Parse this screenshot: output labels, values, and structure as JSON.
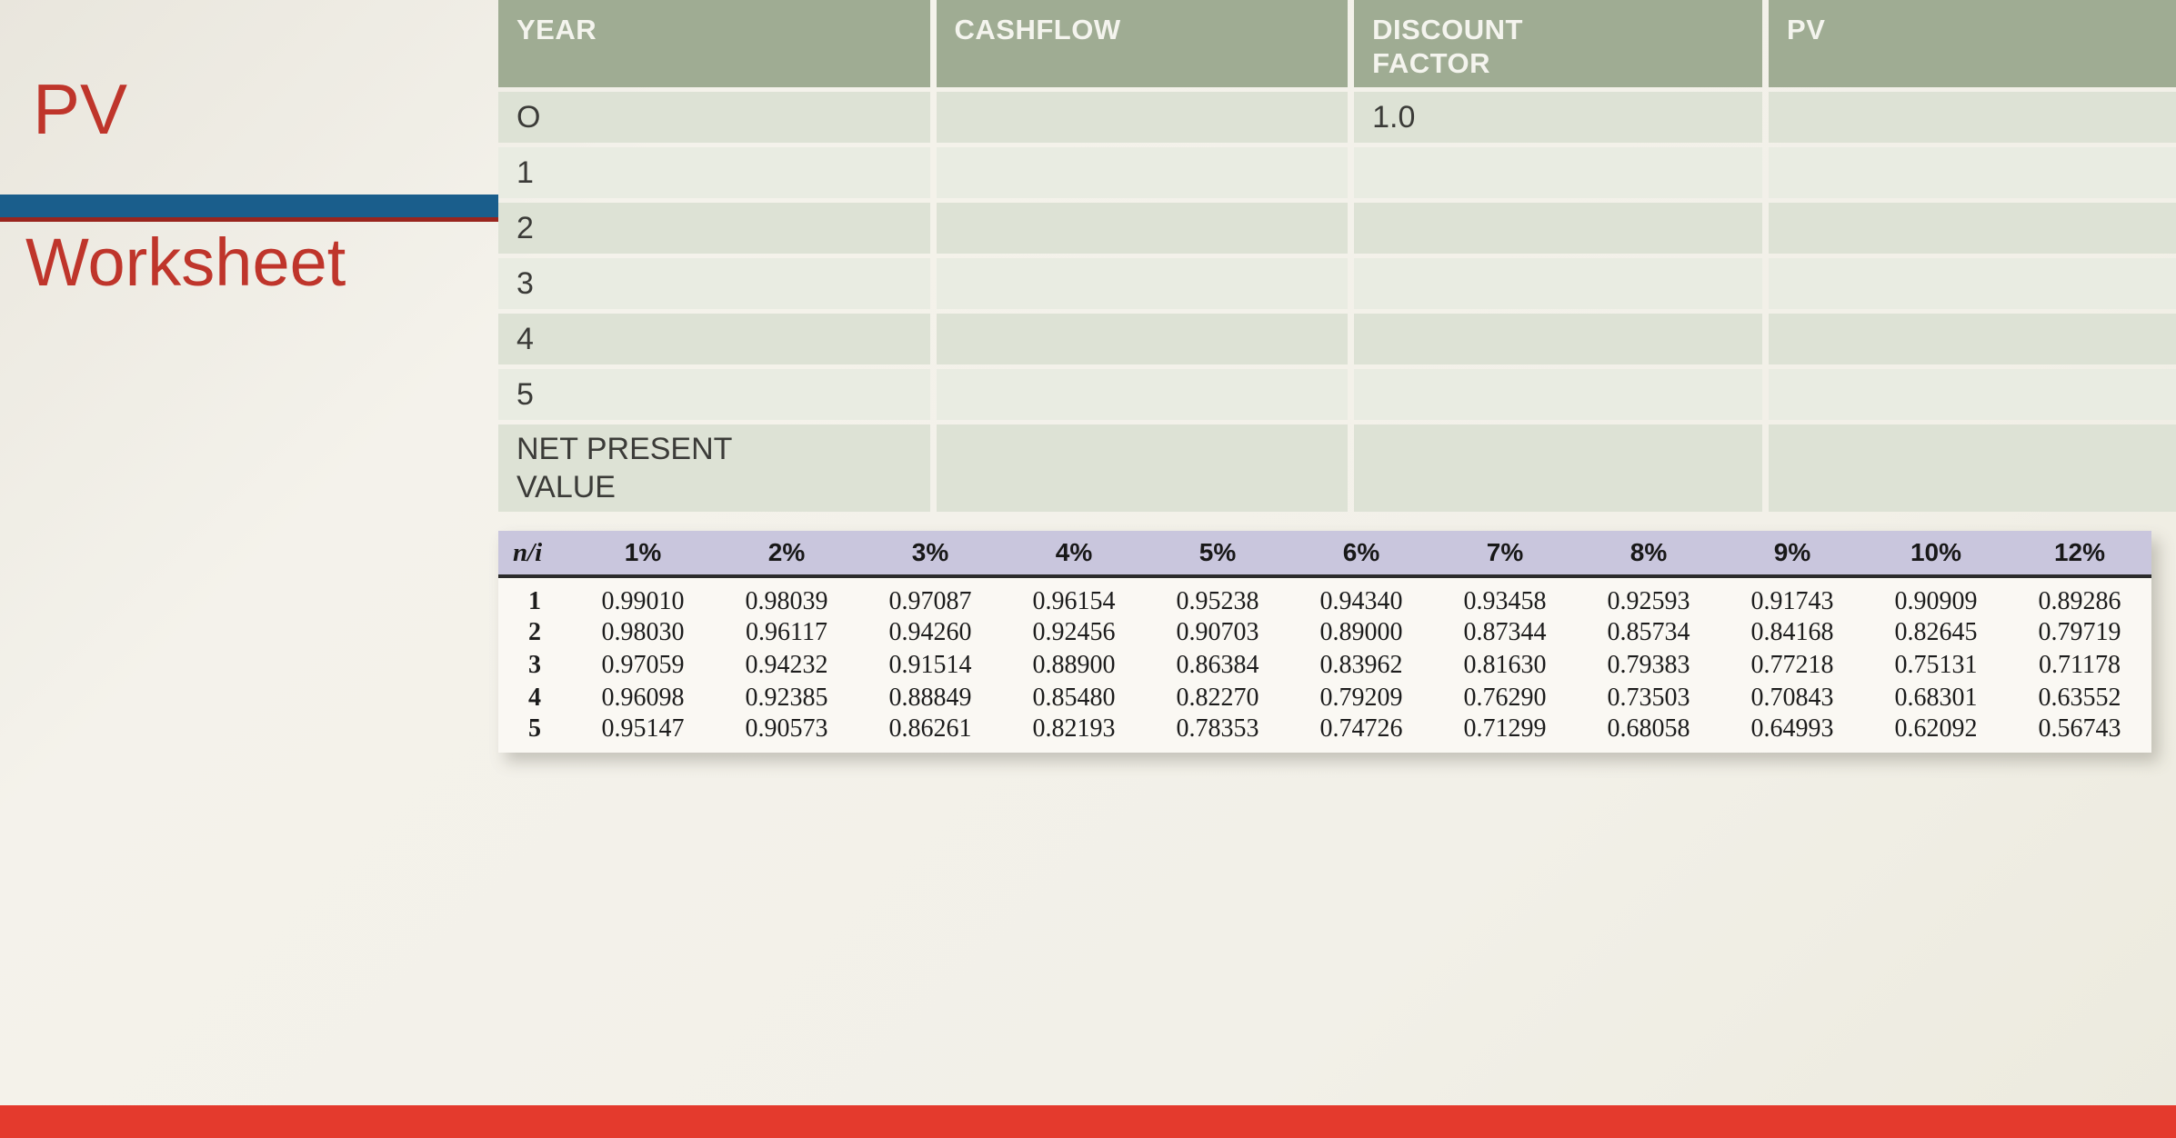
{
  "slide": {
    "title_line1": "PV",
    "title_line2": "Worksheet"
  },
  "worksheet": {
    "headers": [
      "YEAR",
      "CASHFLOW",
      "DISCOUNT FACTOR",
      "PV"
    ],
    "rows": [
      {
        "year": "O",
        "cashflow": "",
        "discount_factor": "1.0",
        "pv": ""
      },
      {
        "year": "1",
        "cashflow": "",
        "discount_factor": "",
        "pv": ""
      },
      {
        "year": "2",
        "cashflow": "",
        "discount_factor": "",
        "pv": ""
      },
      {
        "year": "3",
        "cashflow": "",
        "discount_factor": "",
        "pv": ""
      },
      {
        "year": "4",
        "cashflow": "",
        "discount_factor": "",
        "pv": ""
      },
      {
        "year": "5",
        "cashflow": "",
        "discount_factor": "",
        "pv": ""
      },
      {
        "year": "NET PRESENT VALUE",
        "cashflow": "",
        "discount_factor": "",
        "pv": ""
      }
    ]
  },
  "factor_table": {
    "headers": [
      "n/i",
      "1%",
      "2%",
      "3%",
      "4%",
      "5%",
      "6%",
      "7%",
      "8%",
      "9%",
      "10%",
      "12%"
    ],
    "rows": [
      {
        "n": "1",
        "values": [
          "0.99010",
          "0.98039",
          "0.97087",
          "0.96154",
          "0.95238",
          "0.94340",
          "0.93458",
          "0.92593",
          "0.91743",
          "0.90909",
          "0.89286"
        ]
      },
      {
        "n": "2",
        "values": [
          "0.98030",
          "0.96117",
          "0.94260",
          "0.92456",
          "0.90703",
          "0.89000",
          "0.87344",
          "0.85734",
          "0.84168",
          "0.82645",
          "0.79719"
        ]
      },
      {
        "n": "3",
        "values": [
          "0.97059",
          "0.94232",
          "0.91514",
          "0.88900",
          "0.86384",
          "0.83962",
          "0.81630",
          "0.79383",
          "0.77218",
          "0.75131",
          "0.71178"
        ]
      },
      {
        "n": "4",
        "values": [
          "0.96098",
          "0.92385",
          "0.88849",
          "0.85480",
          "0.82270",
          "0.79209",
          "0.76290",
          "0.73503",
          "0.70843",
          "0.68301",
          "0.63552"
        ]
      },
      {
        "n": "5",
        "values": [
          "0.95147",
          "0.90573",
          "0.86261",
          "0.82193",
          "0.78353",
          "0.74726",
          "0.71299",
          "0.68058",
          "0.64993",
          "0.62092",
          "0.56743"
        ]
      }
    ]
  },
  "colors": {
    "title_red": "#bf352b",
    "divider_blue": "#1a5e8c",
    "table_header_green": "#9fac93",
    "row_band_dark": "#dde2d5",
    "row_band_light": "#e9ece2",
    "factor_header_lavender": "#c9c6dd",
    "bottom_bar_red": "#e43a2d"
  }
}
